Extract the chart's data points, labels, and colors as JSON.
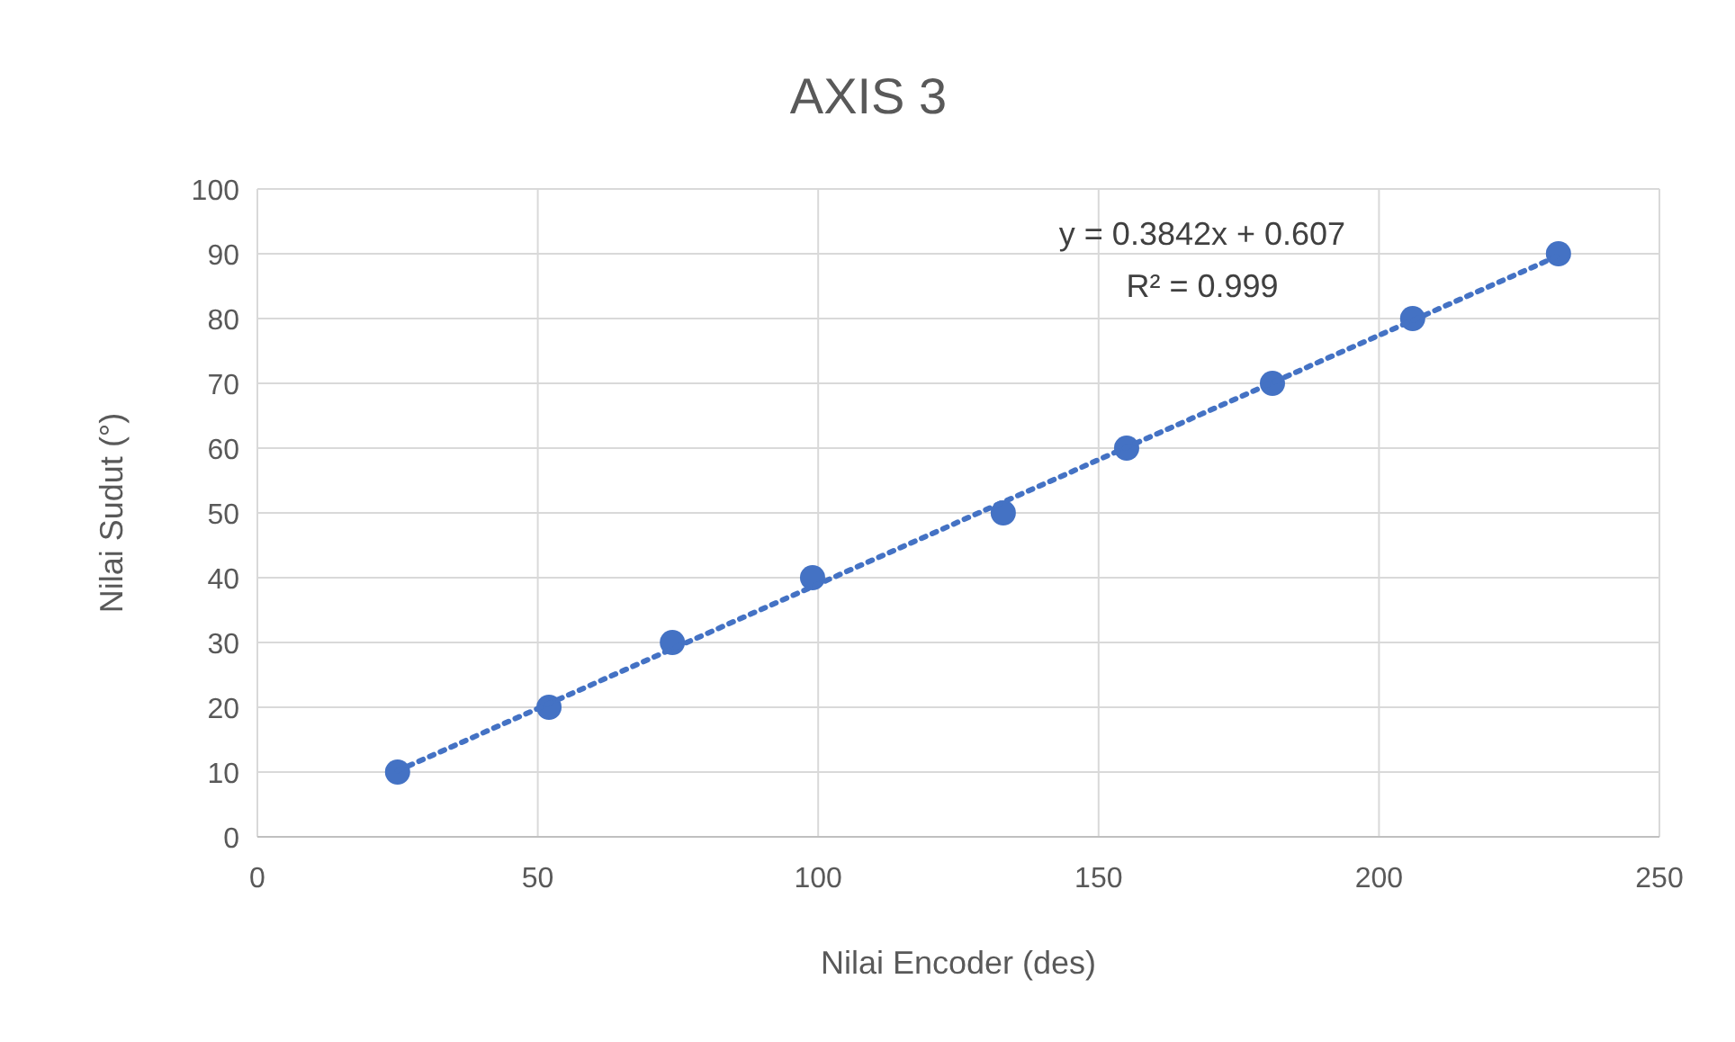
{
  "chart_data": {
    "type": "scatter",
    "title": "AXIS 3",
    "xlabel": "Nilai Encoder (des)",
    "ylabel": "Nilai Sudut (°)",
    "xlim": [
      0,
      250
    ],
    "xticks": [
      0,
      50,
      100,
      150,
      200,
      250
    ],
    "ylim": [
      0,
      100
    ],
    "yticks": [
      0,
      10,
      20,
      30,
      40,
      50,
      60,
      70,
      80,
      90,
      100
    ],
    "grid": true,
    "marker": "circle",
    "series": [
      {
        "color": "#4472c4",
        "x": [
          25,
          52,
          74,
          99,
          133,
          155,
          181,
          206,
          232
        ],
        "values": [
          10,
          20,
          30,
          40,
          50,
          60,
          70,
          80,
          90
        ]
      },
      {
        "type": "line",
        "color": "#4472c4",
        "line_style": "dotted",
        "marker": "none",
        "x": [
          25,
          232
        ],
        "values": [
          10.2,
          89.7
        ]
      }
    ],
    "annotations": [
      "y = 0.3842x + 0.607",
      "R² = 0.999"
    ]
  }
}
